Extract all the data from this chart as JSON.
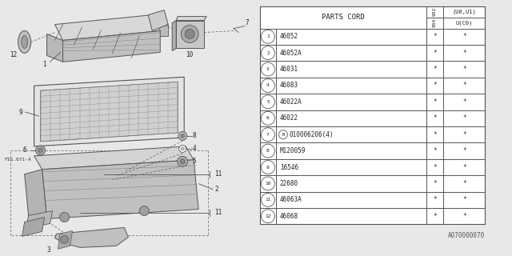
{
  "bg_color": "#e8e8e8",
  "table_bg": "#ffffff",
  "line_color": "#555555",
  "fig_w": 6.4,
  "fig_h": 3.2,
  "col_header": "PARTS CORD",
  "col2_top": "9\n3\n2",
  "col2_bot": "(U0,U1)",
  "col3_top": "9\n3\n4",
  "col3_bot": "U(C0)",
  "rows": [
    {
      "num": "1",
      "code": "46052",
      "c2": "*",
      "c3": "*"
    },
    {
      "num": "2",
      "code": "46052A",
      "c2": "*",
      "c3": "*"
    },
    {
      "num": "3",
      "code": "46031",
      "c2": "*",
      "c3": "*"
    },
    {
      "num": "4",
      "code": "46083",
      "c2": "*",
      "c3": "*"
    },
    {
      "num": "5",
      "code": "46022A",
      "c2": "*",
      "c3": "*"
    },
    {
      "num": "6",
      "code": "46022",
      "c2": "*",
      "c3": "*"
    },
    {
      "num": "7",
      "code": "010006206(4)",
      "c2": "*",
      "c3": "*",
      "prefix_B": true
    },
    {
      "num": "8",
      "code": "M120059",
      "c2": "*",
      "c3": "*"
    },
    {
      "num": "9",
      "code": "16546",
      "c2": "*",
      "c3": "*"
    },
    {
      "num": "10",
      "code": "22680",
      "c2": "*",
      "c3": "*"
    },
    {
      "num": "11",
      "code": "46063A",
      "c2": "*",
      "c3": "*"
    },
    {
      "num": "12",
      "code": "46068",
      "c2": "*",
      "c3": "*"
    }
  ],
  "footer": "A070000070"
}
